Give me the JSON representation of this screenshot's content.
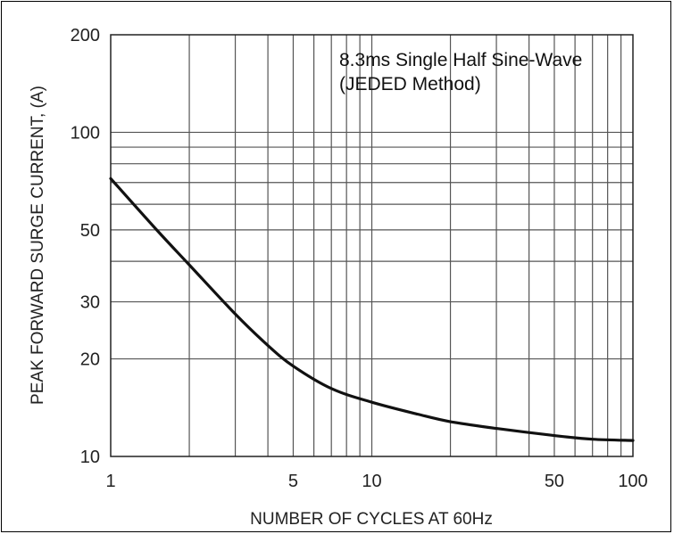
{
  "chart_data": {
    "type": "line",
    "title": "",
    "annotation": [
      "8.3ms Single Half Sine-Wave",
      "(JEDED Method)"
    ],
    "xlabel": "NUMBER OF CYCLES AT 60Hz",
    "ylabel": "PEAK FORWARD SURGE CURRENT, (A)",
    "xscale": "log",
    "yscale": "log",
    "xlim": [
      1,
      100
    ],
    "ylim": [
      10,
      200
    ],
    "x_ticks": [
      1,
      5,
      10,
      50,
      100
    ],
    "y_ticks": [
      10,
      20,
      30,
      50,
      100,
      200
    ],
    "x_grid": [
      2,
      3,
      4,
      5,
      6,
      7,
      8,
      9,
      10,
      20,
      30,
      40,
      50,
      60,
      70,
      80,
      90
    ],
    "y_grid": [
      20,
      30,
      40,
      50,
      60,
      70,
      80,
      90,
      100
    ],
    "grid": true,
    "line_color": "#111111",
    "series": [
      {
        "x": [
          1,
          1.5,
          2,
          3,
          4,
          5,
          7,
          10,
          15,
          20,
          30,
          50,
          70,
          100
        ],
        "values": [
          72,
          50,
          39,
          27.5,
          22,
          19,
          16.2,
          14.7,
          13.5,
          12.8,
          12.2,
          11.6,
          11.3,
          11.2
        ]
      }
    ]
  }
}
